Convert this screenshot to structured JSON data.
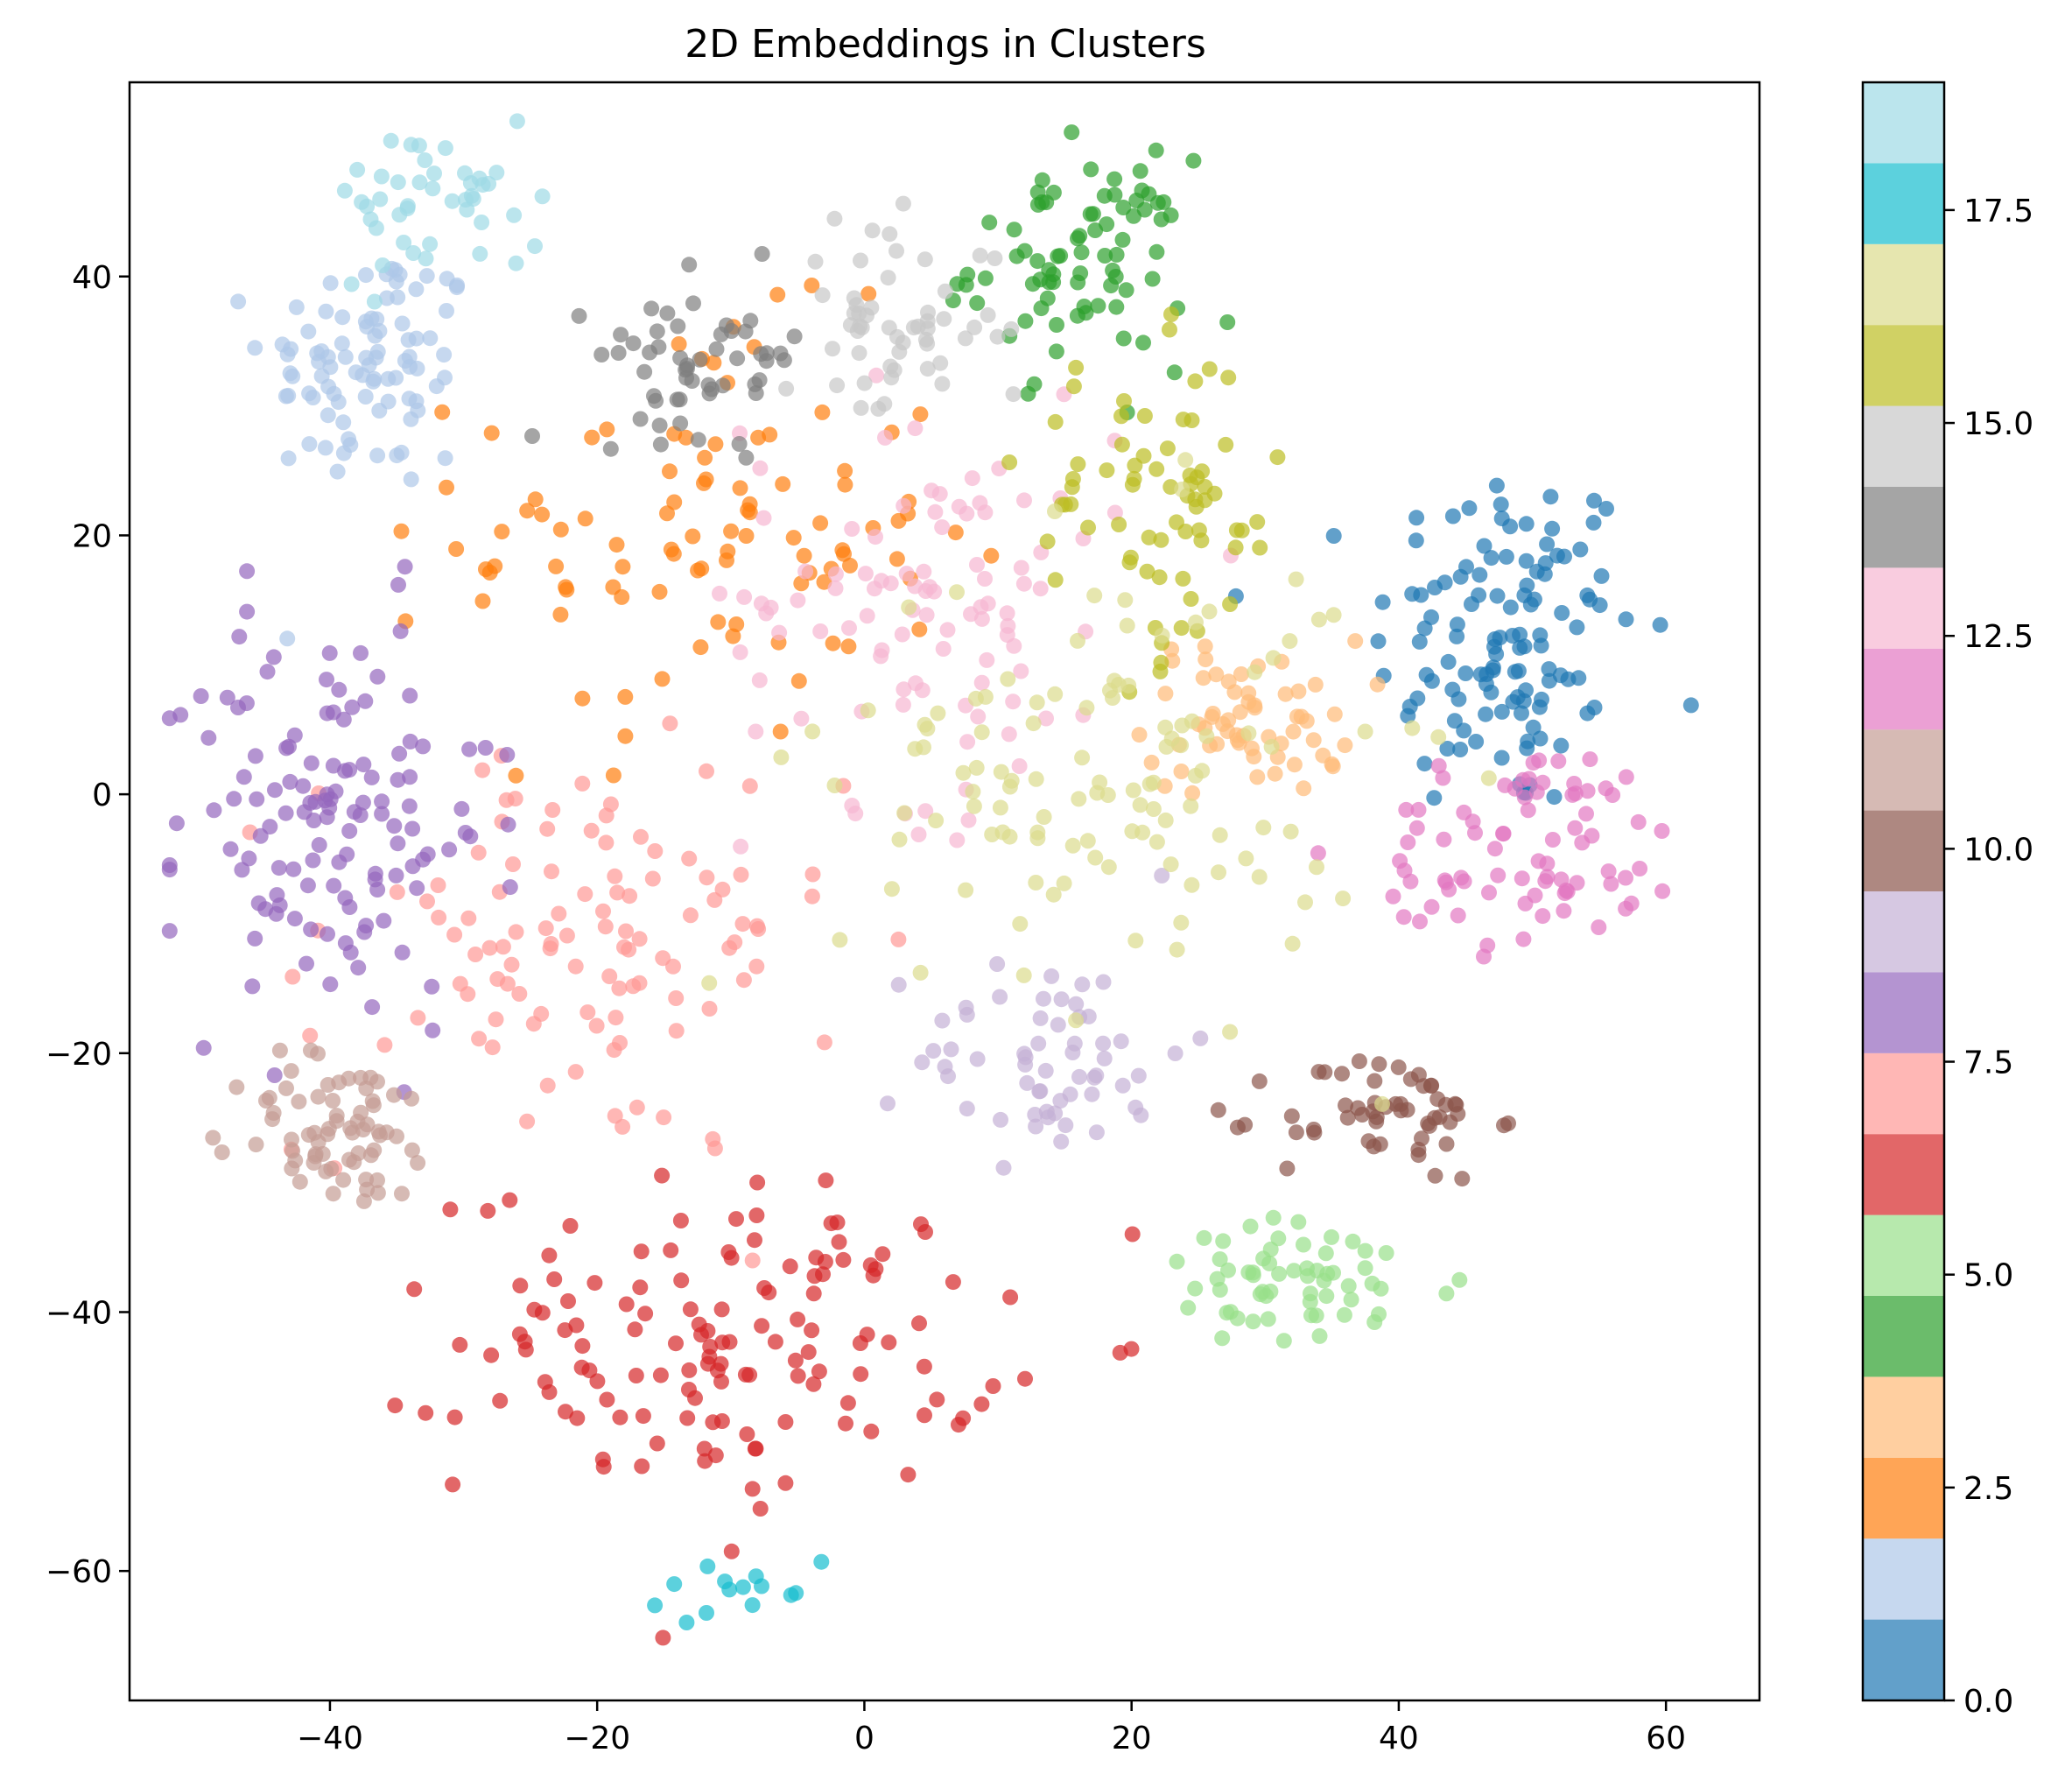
{
  "chart_data": {
    "type": "scatter",
    "title": "2D Embeddings in Clusters",
    "xlabel": "",
    "ylabel": "",
    "xlim": [
      -55,
      67
    ],
    "ylim": [
      -70,
      55
    ],
    "xticks": [
      -40,
      -20,
      0,
      20,
      40,
      60
    ],
    "yticks": [
      -60,
      -40,
      -20,
      0,
      20,
      40
    ],
    "xtick_labels": [
      "−40",
      "−20",
      "0",
      "20",
      "40",
      "60"
    ],
    "ytick_labels": [
      "−60",
      "−40",
      "−20",
      "0",
      "20",
      "40"
    ],
    "colorbar": {
      "range": [
        0,
        19
      ],
      "ticks": [
        0,
        2.5,
        5,
        7.5,
        10,
        12.5,
        15,
        17.5
      ],
      "tick_labels": [
        "0.0",
        "2.5",
        "5.0",
        "7.5",
        "10.0",
        "12.5",
        "15.0",
        "17.5"
      ],
      "colormap": "tab20",
      "colors": [
        "#1f77b4",
        "#aec7e8",
        "#ff7f0e",
        "#ffbb78",
        "#2ca02c",
        "#98df8a",
        "#d62728",
        "#ff9896",
        "#9467bd",
        "#c5b0d5",
        "#8c564b",
        "#c49c94",
        "#e377c2",
        "#f7b6d2",
        "#7f7f7f",
        "#c7c7c7",
        "#bcbd22",
        "#dbdb8d",
        "#17becf",
        "#9edae5"
      ]
    },
    "grid": false,
    "point_alpha": 0.7,
    "clusters": [
      {
        "label": 0,
        "center": [
          48,
          12
        ],
        "spread": [
          5,
          7
        ],
        "n": 120
      },
      {
        "label": 1,
        "center": [
          -37,
          33
        ],
        "spread": [
          4,
          5
        ],
        "n": 90
      },
      {
        "label": 2,
        "center": [
          -12,
          20
        ],
        "spread": [
          9,
          8
        ],
        "n": 100
      },
      {
        "label": 3,
        "center": [
          29,
          6
        ],
        "spread": [
          4,
          3
        ],
        "n": 60
      },
      {
        "label": 4,
        "center": [
          16,
          41
        ],
        "spread": [
          4,
          4
        ],
        "n": 80
      },
      {
        "label": 5,
        "center": [
          33,
          -38
        ],
        "spread": [
          6,
          2.5
        ],
        "n": 60
      },
      {
        "label": 6,
        "center": [
          -10,
          -42
        ],
        "spread": [
          10,
          6
        ],
        "n": 140
      },
      {
        "label": 7,
        "center": [
          -22,
          -12
        ],
        "spread": [
          10,
          8
        ],
        "n": 110
      },
      {
        "label": 8,
        "center": [
          -40,
          -2
        ],
        "spread": [
          6,
          8
        ],
        "n": 130
      },
      {
        "label": 9,
        "center": [
          14,
          -20
        ],
        "spread": [
          5,
          4
        ],
        "n": 60
      },
      {
        "label": 10,
        "center": [
          39,
          -25
        ],
        "spread": [
          4,
          2.5
        ],
        "n": 55
      },
      {
        "label": 11,
        "center": [
          -39,
          -26
        ],
        "spread": [
          4,
          3
        ],
        "n": 70
      },
      {
        "label": 12,
        "center": [
          50,
          -4
        ],
        "spread": [
          6,
          4
        ],
        "n": 80
      },
      {
        "label": 13,
        "center": [
          5,
          15
        ],
        "spread": [
          7,
          8
        ],
        "n": 100
      },
      {
        "label": 14,
        "center": [
          -12,
          34
        ],
        "spread": [
          4,
          3
        ],
        "n": 55
      },
      {
        "label": 15,
        "center": [
          2,
          36
        ],
        "spread": [
          4,
          4
        ],
        "n": 55
      },
      {
        "label": 16,
        "center": [
          22,
          22
        ],
        "spread": [
          5,
          6
        ],
        "n": 70
      },
      {
        "label": 17,
        "center": [
          18,
          2
        ],
        "spread": [
          10,
          9
        ],
        "n": 120
      },
      {
        "label": 18,
        "center": [
          -8,
          -62
        ],
        "spread": [
          5,
          1.5
        ],
        "n": 14
      },
      {
        "label": 19,
        "center": [
          -32,
          46
        ],
        "spread": [
          4,
          3
        ],
        "n": 45
      }
    ]
  }
}
